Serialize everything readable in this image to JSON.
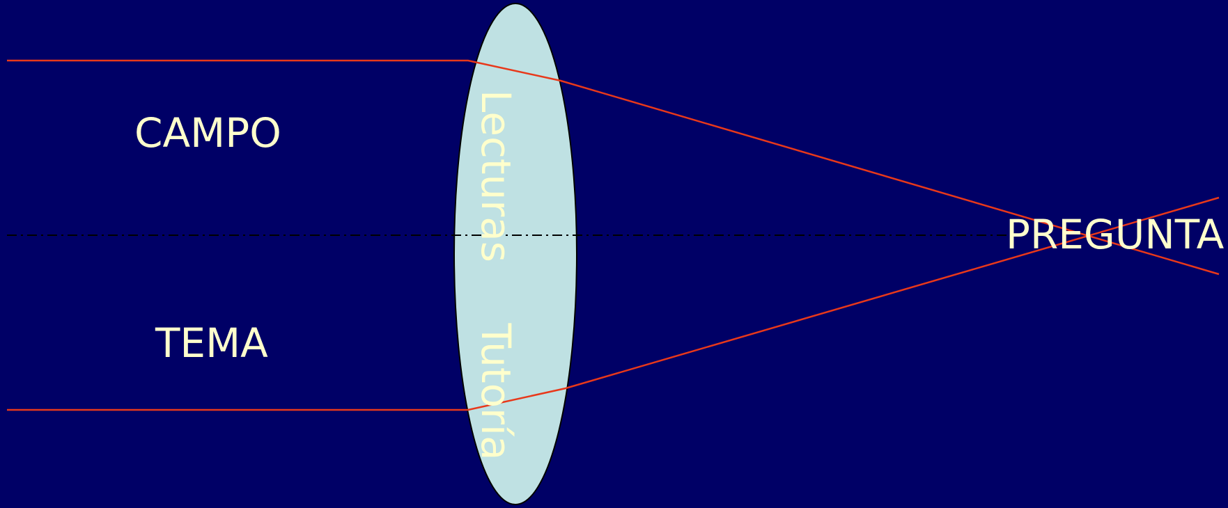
{
  "labels": {
    "campo": "CAMPO",
    "tema": "TEMA",
    "pregunta": "PREGUNTA",
    "lecturas": "Lecturas",
    "tutoria": "Tutoría"
  },
  "colors": {
    "background": "#000066",
    "lens_fill": "#BFE1E3",
    "lens_stroke": "#000000",
    "ray": "#E8381A",
    "axis": "#000000",
    "text": "#FFFFCC"
  }
}
